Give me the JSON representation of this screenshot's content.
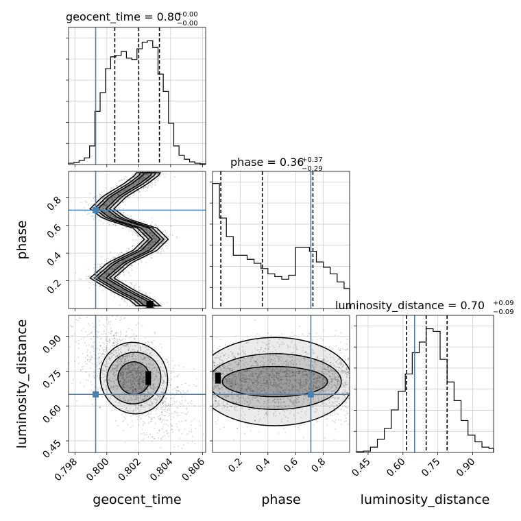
{
  "chart_data": {
    "type": "corner",
    "parameters": [
      "geocent_time",
      "phase",
      "luminosity_distance"
    ],
    "titles": {
      "geocent_time": {
        "lhs": "geocent_time = 0.80",
        "sup": "+0.00",
        "sub": "−0.00"
      },
      "phase": {
        "lhs": "phase = 0.36",
        "sup": "+0.37",
        "sub": "−0.29"
      },
      "luminosity_distance": {
        "lhs": "luminosity_distance = 0.70",
        "sup": "+0.09",
        "sub": "−0.09"
      }
    },
    "axis_labels": {
      "geocent_time": "geocent_time",
      "phase": "phase",
      "luminosity_distance": "luminosity_distance"
    },
    "ranges": {
      "geocent_time": [
        0.7976,
        0.8062
      ],
      "phase": [
        0.0,
        0.99
      ],
      "luminosity_distance": [
        0.4,
        0.99
      ]
    },
    "ticks": {
      "geocent_time": {
        "values": [
          0.798,
          0.8,
          0.802,
          0.804,
          0.806
        ],
        "labels": [
          "0.798",
          "0.800",
          "0.802",
          "0.804",
          "0.806"
        ]
      },
      "phase": {
        "values": [
          0.2,
          0.4,
          0.6,
          0.8
        ],
        "labels": [
          "0.2",
          "0.4",
          "0.6",
          "0.8"
        ]
      },
      "luminosity_distance": {
        "values": [
          0.45,
          0.6,
          0.75,
          0.9
        ],
        "labels": [
          "0.45",
          "0.60",
          "0.75",
          "0.90"
        ]
      }
    },
    "truths": {
      "geocent_time": 0.7993,
      "phase": 0.71,
      "luminosity_distance": 0.65
    },
    "quantiles": {
      "geocent_time": [
        0.8005,
        0.802,
        0.8033
      ],
      "phase": [
        0.06,
        0.36,
        0.725
      ],
      "luminosity_distance": [
        0.615,
        0.7,
        0.79
      ]
    },
    "histograms": {
      "geocent_time": {
        "edges": [
          0.7976,
          0.79793,
          0.79826,
          0.79859,
          0.79892,
          0.79925,
          0.79958,
          0.79991,
          0.80024,
          0.80057,
          0.8009,
          0.80123,
          0.80156,
          0.80189,
          0.80222,
          0.80255,
          0.80288,
          0.80321,
          0.80354,
          0.80387,
          0.8042,
          0.80453,
          0.80486,
          0.80519,
          0.80552,
          0.80585,
          0.8062
        ],
        "counts": [
          0.01,
          0.015,
          0.03,
          0.05,
          0.14,
          0.4,
          0.54,
          0.72,
          0.81,
          0.82,
          0.85,
          0.8,
          0.79,
          0.87,
          0.92,
          0.93,
          0.88,
          0.68,
          0.55,
          0.31,
          0.14,
          0.07,
          0.04,
          0.02,
          0.01,
          0.005
        ]
      },
      "phase": {
        "edges": [
          0.0,
          0.05,
          0.1,
          0.15,
          0.2,
          0.25,
          0.3,
          0.35,
          0.4,
          0.45,
          0.5,
          0.55,
          0.6,
          0.65,
          0.7,
          0.75,
          0.8,
          0.85,
          0.9,
          0.95,
          0.99
        ],
        "counts": [
          0.94,
          0.68,
          0.54,
          0.4,
          0.4,
          0.37,
          0.34,
          0.3,
          0.26,
          0.24,
          0.22,
          0.25,
          0.46,
          0.46,
          0.43,
          0.35,
          0.31,
          0.26,
          0.2,
          0.15
        ]
      },
      "luminosity_distance": {
        "edges": [
          0.4,
          0.43,
          0.46,
          0.49,
          0.52,
          0.55,
          0.58,
          0.61,
          0.64,
          0.67,
          0.7,
          0.73,
          0.76,
          0.79,
          0.82,
          0.85,
          0.88,
          0.91,
          0.94,
          0.97,
          0.99
        ],
        "counts": [
          0.005,
          0.01,
          0.04,
          0.1,
          0.18,
          0.32,
          0.46,
          0.59,
          0.75,
          0.83,
          0.93,
          0.91,
          0.7,
          0.53,
          0.39,
          0.24,
          0.13,
          0.08,
          0.04,
          0.03
        ]
      }
    },
    "contours": {
      "phase_vs_geocent_time": {
        "levels": [
          "outer",
          "middle",
          "inner"
        ],
        "ridge": [
          [
            0.8026,
            0.97
          ],
          [
            0.8018,
            0.9
          ],
          [
            0.8005,
            0.81
          ],
          [
            0.7997,
            0.72
          ],
          [
            0.8005,
            0.65
          ],
          [
            0.8024,
            0.58
          ],
          [
            0.8031,
            0.5
          ],
          [
            0.8024,
            0.42
          ],
          [
            0.8008,
            0.33
          ],
          [
            0.7997,
            0.22
          ],
          [
            0.801,
            0.13
          ],
          [
            0.8022,
            0.06
          ],
          [
            0.8027,
            0.01
          ]
        ],
        "half_widths": [
          0.00075,
          0.00048,
          0.00025
        ]
      },
      "luminosity_distance_vs_geocent_time": {
        "center": [
          0.8017,
          0.72
        ],
        "semi_axes": [
          [
            0.0021,
            0.155
          ],
          [
            0.0017,
            0.11
          ],
          [
            0.001,
            0.07
          ]
        ],
        "tilt_deg": -18
      },
      "luminosity_distance_vs_phase": {
        "center": [
          0.45,
          0.705
        ],
        "semi_axes": [
          [
            0.56,
            0.19
          ],
          [
            0.48,
            0.12
          ],
          [
            0.38,
            0.065
          ]
        ]
      }
    }
  }
}
